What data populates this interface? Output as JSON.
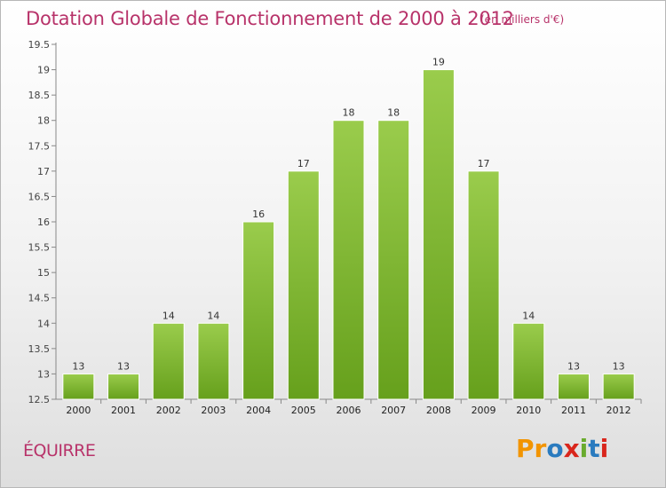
{
  "header": {
    "title": "Dotation Globale de Fonctionnement de 2000 à 2012",
    "unit_note": "(en milliers d'€)"
  },
  "footer": {
    "commune": "ÉQUIRRE",
    "logo_text": "Proxiti"
  },
  "colors": {
    "title": "#b8336a",
    "bar_top": "#9acc4c",
    "bar_bottom": "#66a01c",
    "logo": [
      "#f29400",
      "#f29400",
      "#2a7bbf",
      "#d9261c",
      "#6aab2e",
      "#2a7bbf",
      "#d9261c"
    ]
  },
  "chart_data": {
    "type": "bar",
    "categories": [
      "2000",
      "2001",
      "2002",
      "2003",
      "2004",
      "2005",
      "2006",
      "2007",
      "2008",
      "2009",
      "2010",
      "2011",
      "2012"
    ],
    "values": [
      13,
      13,
      14,
      14,
      16,
      17,
      18,
      18,
      19,
      17,
      14,
      13,
      13
    ],
    "plotted_values": [
      13,
      13,
      14,
      14,
      16,
      17,
      18,
      18,
      19,
      17,
      14,
      13,
      13
    ],
    "y_ticks": [
      "12.5",
      "13",
      "13.5",
      "14",
      "14.5",
      "15",
      "15.5",
      "16",
      "16.5",
      "17",
      "17.5",
      "18",
      "18.5",
      "19",
      "19.5"
    ],
    "ylim": [
      12.5,
      19.5
    ],
    "grid": false,
    "title": "Dotation Globale de Fonctionnement de 2000 à 2012",
    "ylabel": "(en milliers d'€)"
  }
}
